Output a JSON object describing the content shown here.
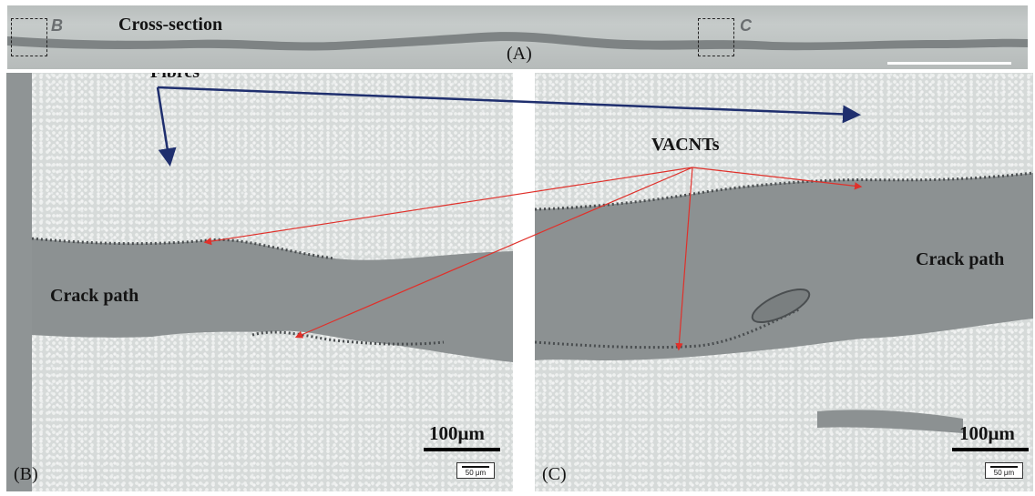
{
  "panel_a": {
    "title": "Cross-section",
    "caption": "(A)",
    "box_b_letter": "B",
    "box_c_letter": "C"
  },
  "panel_b": {
    "caption": "(B)",
    "fibres_label": "Fibres",
    "crack_label": "Crack path",
    "scale_label": "100μm",
    "small_scale_label": "50 μm"
  },
  "panel_c": {
    "caption": "(C)",
    "vacnts_label": "VACNTs",
    "crack_label": "Crack path",
    "scale_label": "100μm",
    "small_scale_label": "50 μm"
  },
  "colors": {
    "fibre_arrow": "#1f2f6e",
    "vacnt_arrow": "#e0302a",
    "matrix": "#8a8f90",
    "fibre_bundle": "#d6dad9"
  }
}
